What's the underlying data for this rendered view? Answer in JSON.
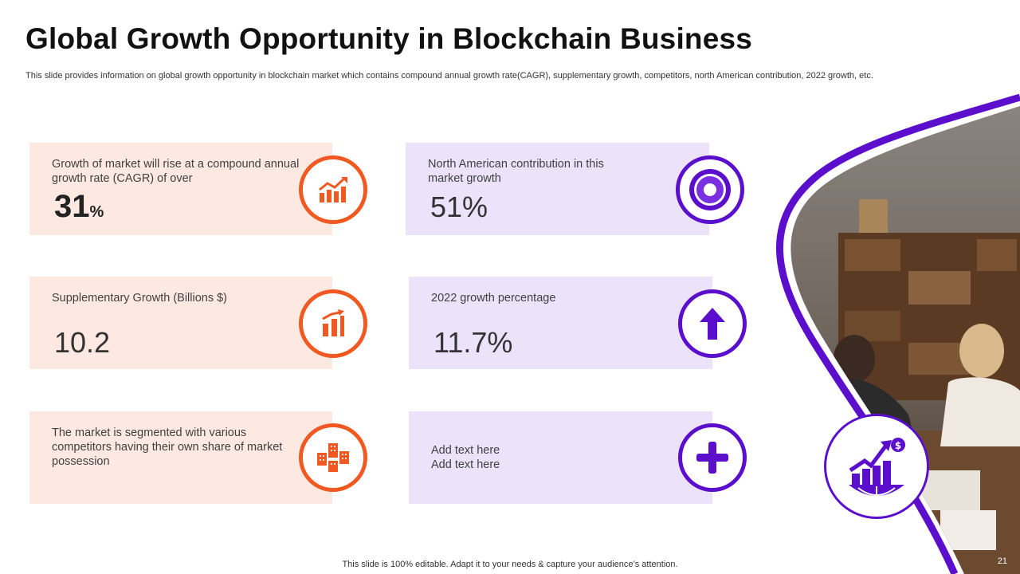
{
  "header": {
    "title": "Global Growth Opportunity in Blockchain Business",
    "subtitle": "This slide provides information on global growth opportunity in blockchain market which contains compound annual growth rate(CAGR), supplementary growth, competitors, north American contribution, 2022 growth, etc."
  },
  "cards": {
    "cagr": {
      "label": "Growth of market will rise at a compound annual growth rate (CAGR) of over",
      "value": "31",
      "unit": "%",
      "icon": "line-chart-up-icon"
    },
    "north_america": {
      "label": "North American contribution in this market growth",
      "value": "51%",
      "icon": "target-ring-icon"
    },
    "supplementary": {
      "label": "Supplementary Growth (Billions $)",
      "value": "10.2",
      "icon": "bar-chart-arrow-icon"
    },
    "growth_2022": {
      "label": "2022 growth percentage",
      "value": "11.7%",
      "icon": "arrow-up-icon"
    },
    "competitors": {
      "label": "The market is segmented with various competitors having their own share of market possession",
      "icon": "buildings-icon"
    },
    "placeholder": {
      "line1": "Add text here",
      "line2": "Add text here",
      "icon": "plus-icon"
    }
  },
  "colors": {
    "orange_accent": "#f05a22",
    "purple_accent": "#5b0fcc",
    "orange_card": "#fde9e2",
    "purple_card": "#ece3fb"
  },
  "badge": {
    "icon": "global-growth-icon"
  },
  "footer": {
    "note": "This slide is 100% editable. Adapt it to your needs & capture your audience’s attention.",
    "page_number": "21"
  }
}
